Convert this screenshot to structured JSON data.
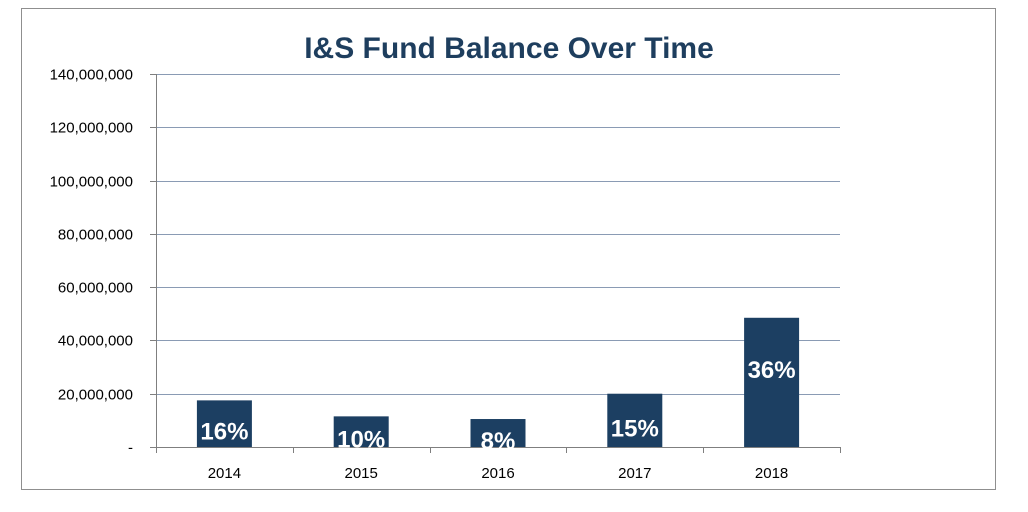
{
  "chart_data": {
    "type": "bar",
    "title": "I&S Fund Balance Over Time",
    "xlabel": "",
    "ylabel": "",
    "categories": [
      "2014",
      "2015",
      "2016",
      "2017",
      "2018"
    ],
    "values": [
      17500000,
      11500000,
      10500000,
      20000000,
      48500000
    ],
    "data_labels": [
      "16%",
      "10%",
      "8%",
      "15%",
      "36%"
    ],
    "ylim": [
      0,
      140000000
    ],
    "y_ticks": [
      0,
      20000000,
      40000000,
      60000000,
      80000000,
      100000000,
      120000000,
      140000000
    ],
    "y_tick_labels": [
      "-",
      "20,000,000",
      "40,000,000",
      "60,000,000",
      "80,000,000",
      "100,000,000",
      "120,000,000",
      "140,000,000"
    ],
    "grid": true,
    "legend": "none",
    "colors": {
      "bar": "#1c3f62",
      "title": "#1e3e5e",
      "gridline": "#8a9bb4",
      "axis": "#7f7f7f",
      "data_label": "#ffffff"
    }
  }
}
